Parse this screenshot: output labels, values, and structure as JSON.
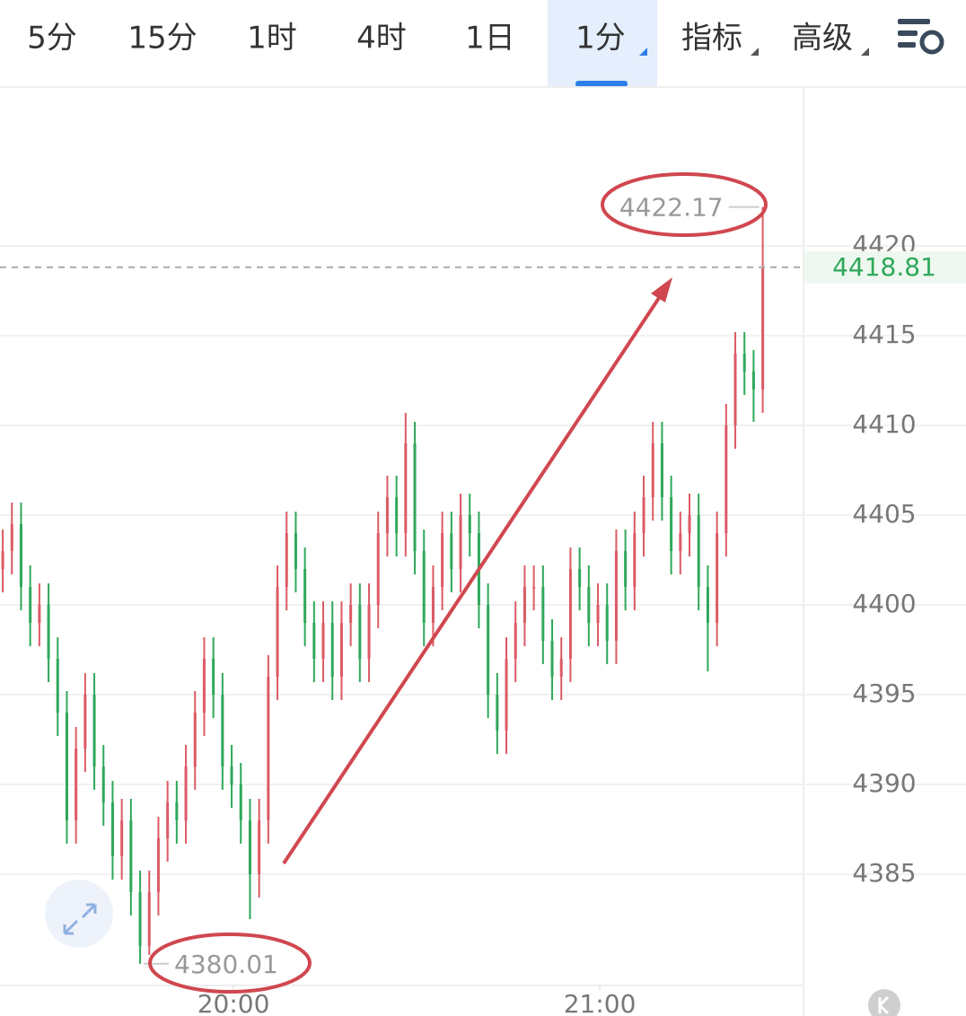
{
  "tabs": [
    "5分",
    "15分",
    "1时",
    "4时",
    "1日",
    "1分",
    "指标",
    "高级"
  ],
  "active_tab": 5,
  "chart_data": {
    "type": "candlestick",
    "open": [
      4402,
      4403,
      4404.5,
      4401,
      4399,
      4400,
      4397,
      4394,
      4388,
      4392,
      4395,
      4391,
      4389,
      4386,
      4388,
      4384,
      4381,
      4384,
      4387,
      4389,
      4388,
      4391,
      4394,
      4397,
      4395,
      4391,
      4390,
      4388,
      4385,
      4388,
      4396,
      4401,
      4404,
      4402,
      4399,
      4397,
      4399,
      4396,
      4399,
      4400,
      4397,
      4400,
      4404,
      4406,
      4404,
      4409,
      4403,
      4399,
      4401,
      4404,
      4402,
      4405,
      4404,
      4400,
      4395,
      4393,
      4397,
      4399,
      4401,
      4401,
      4398,
      4396,
      4397,
      4402,
      4401,
      4399,
      4400,
      4398,
      4403,
      4401,
      4404,
      4406,
      4409,
      4406,
      4403,
      4404,
      4405,
      4401,
      4399,
      4404,
      4410,
      4414,
      4413,
      4412
    ],
    "high": [
      4404.2,
      4405.7,
      4405.7,
      4402.2,
      4401.2,
      4401.2,
      4398.2,
      4395.2,
      4393.2,
      4396.2,
      4396.2,
      4392.2,
      4390.2,
      4389.2,
      4389.2,
      4385.2,
      4385.2,
      4388.2,
      4390.2,
      4390.2,
      4392.2,
      4395.2,
      4398.2,
      4398.2,
      4396.2,
      4392.2,
      4391.2,
      4389.2,
      4389.2,
      4397.2,
      4402.2,
      4405.2,
      4405.2,
      4403.2,
      4400.2,
      4400.2,
      4400.2,
      4400.2,
      4401.2,
      4401.2,
      4401.2,
      4405.2,
      4407.2,
      4407.2,
      4410.7,
      4410.2,
      4404.2,
      4402.2,
      4405.2,
      4405.2,
      4406.2,
      4406.2,
      4405.2,
      4401.2,
      4396.2,
      4398.2,
      4400.2,
      4402.2,
      4402.2,
      4402.2,
      4399.2,
      4398.2,
      4403.2,
      4403.2,
      4402.2,
      4401.2,
      4401.2,
      4404.2,
      4404.2,
      4405.2,
      4407.2,
      4410.2,
      4410.2,
      4407.2,
      4405.2,
      4406.2,
      4406.2,
      4402.2,
      4405.2,
      4411.2,
      4415.2,
      4415.2,
      4414.2,
      4422.17
    ],
    "low": [
      4400.7,
      4401.7,
      4399.7,
      4397.7,
      4397.7,
      4395.7,
      4392.7,
      4386.7,
      4386.7,
      4390.7,
      4389.7,
      4387.7,
      4384.7,
      4384.7,
      4382.7,
      4380.01,
      4380.5,
      4382.7,
      4385.7,
      4386.7,
      4386.7,
      4389.7,
      4392.7,
      4393.7,
      4389.7,
      4388.7,
      4386.7,
      4382.5,
      4383.7,
      4386.7,
      4394.7,
      4399.7,
      4400.7,
      4397.7,
      4395.7,
      4395.7,
      4394.7,
      4394.7,
      4397.7,
      4395.7,
      4395.7,
      4398.7,
      4402.7,
      4402.7,
      4402.7,
      4401.7,
      4397.7,
      4397.7,
      4399.7,
      4400.7,
      4400.7,
      4402.7,
      4398.7,
      4393.7,
      4391.7,
      4391.7,
      4395.7,
      4397.7,
      4399.7,
      4396.7,
      4394.7,
      4394.7,
      4395.7,
      4399.7,
      4397.7,
      4397.7,
      4396.7,
      4396.7,
      4399.7,
      4399.7,
      4402.7,
      4404.7,
      4404.7,
      4401.7,
      4401.7,
      4402.7,
      4399.7,
      4396.3,
      4397.7,
      4402.7,
      4408.7,
      4411.7,
      4410.2,
      4410.7
    ],
    "close": [
      4403,
      4404.5,
      4401,
      4399,
      4400,
      4397,
      4394,
      4388,
      4392,
      4395,
      4391,
      4389,
      4386,
      4388,
      4384,
      4381,
      4384,
      4387,
      4389,
      4388,
      4391,
      4394,
      4397,
      4395,
      4391,
      4390,
      4388,
      4385,
      4388,
      4396,
      4401,
      4404,
      4402,
      4399,
      4397,
      4399,
      4396,
      4399,
      4400,
      4397,
      4400,
      4404,
      4406,
      4404,
      4409,
      4403,
      4399,
      4401,
      4404,
      4402,
      4405,
      4404,
      4400,
      4395,
      4393,
      4397,
      4399,
      4401,
      4401,
      4398,
      4396,
      4397,
      4402,
      4401,
      4399,
      4400,
      4398,
      4403,
      4401,
      4404,
      4406,
      4409,
      4406,
      4403,
      4404,
      4405,
      4401,
      4399,
      4404,
      4410,
      4414,
      4413,
      4412,
      4418.81
    ],
    "up_color": "#dc5a66",
    "down_color": "#2fa85a",
    "ylim": [
      4378.8,
      4428.8
    ],
    "yticks": [
      4385,
      4390,
      4395,
      4400,
      4405,
      4410,
      4415,
      4420
    ],
    "xlim": [
      -0.3,
      87.45
    ],
    "xticks": [
      {
        "value": 25.2,
        "label": "20:00"
      },
      {
        "value": 65.2,
        "label": "21:00"
      }
    ],
    "grid": true
  }
}
